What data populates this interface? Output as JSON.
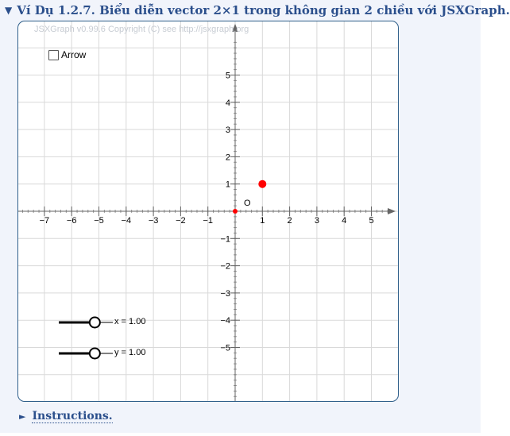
{
  "header": {
    "toggle": "▼",
    "title": "Ví Dụ 1.2.7. Biểu diễn vector 2×1 trong không gian 2 chiều với JSXGraph."
  },
  "board": {
    "copyright": "JSXGraph v0.99.6 Copyright (C) see http://jsxgraph.org",
    "arrow_checkbox_label": "Arrow",
    "origin_label": "O",
    "x_ticks": [
      "−7",
      "−6",
      "−5",
      "−4",
      "−3",
      "−2",
      "−1",
      "1",
      "2",
      "3",
      "4",
      "5"
    ],
    "y_ticks": [
      "5",
      "4",
      "3",
      "2",
      "1",
      "−1",
      "−2",
      "−3",
      "−4",
      "−5"
    ],
    "point": {
      "x": 1,
      "y": 1,
      "color": "#ff0000"
    },
    "sliders": [
      {
        "label": "x = 1.00",
        "value": 1.0
      },
      {
        "label": "y = 1.00",
        "value": 1.0
      }
    ]
  },
  "instructions": {
    "toggle": "►",
    "label": "Instructions."
  },
  "colors": {
    "accent": "#2b4f8c",
    "board_border": "#2f5f8a",
    "point": "#ff0000"
  }
}
